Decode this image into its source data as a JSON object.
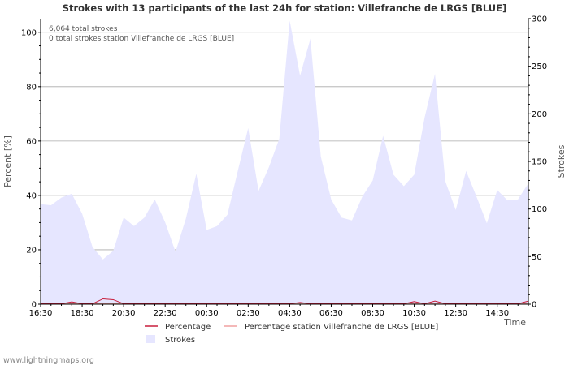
{
  "chart_data": {
    "type": "area",
    "title": "Strokes with 13 participants of the last 24h for station: Villefranche de LRGS [BLUE]",
    "xlabel": "Time",
    "ylabel_left": "Percent   [%]",
    "ylabel_right": "Strokes",
    "ylim_left": [
      0,
      105
    ],
    "ylim_right": [
      0,
      300
    ],
    "yticks_left": [
      "0",
      "20",
      "40",
      "60",
      "80",
      "100"
    ],
    "yticks_right": [
      "0",
      "50",
      "100",
      "150",
      "200",
      "250",
      "300"
    ],
    "yticks_left_values": [
      0,
      20,
      40,
      60,
      80,
      100
    ],
    "yticks_right_values": [
      0,
      50,
      100,
      150,
      200,
      250,
      300
    ],
    "xticks": [
      "16:30",
      "18:30",
      "20:30",
      "22:30",
      "00:30",
      "02:30",
      "04:30",
      "06:30",
      "08:30",
      "10:30",
      "12:30",
      "14:30"
    ],
    "x_start_hours": 0,
    "x_end_hours": 23.5,
    "annotations": [
      "6,064 total strokes",
      "0 total strokes station Villefranche de LRGS [BLUE]"
    ],
    "legend": {
      "percentage": "Percentage",
      "percentage_station": "Percentage station Villefranche de LRGS [BLUE]",
      "strokes": "Strokes"
    },
    "series": [
      {
        "name": "Strokes",
        "axis": "right",
        "hours": [
          0,
          0.5,
          1,
          1.5,
          2,
          2.5,
          3,
          3.5,
          4,
          4.5,
          5,
          5.5,
          6,
          6.5,
          7,
          7.5,
          8,
          8.5,
          9,
          9.5,
          10,
          10.5,
          11,
          11.5,
          12,
          12.5,
          13,
          13.5,
          14,
          14.5,
          15,
          15.5,
          16,
          16.5,
          17,
          17.5,
          18,
          18.5,
          19,
          19.5,
          20,
          20.5,
          21,
          21.5,
          22,
          22.5,
          23,
          23.5
        ],
        "values": [
          105,
          104,
          112,
          116,
          95,
          60,
          47,
          56,
          91,
          82,
          91,
          110,
          86,
          55,
          90,
          137,
          78,
          82,
          94,
          140,
          185,
          119,
          144,
          174,
          298,
          240,
          279,
          155,
          110,
          91,
          88,
          113,
          130,
          177,
          136,
          124,
          136,
          196,
          242,
          129,
          99,
          140,
          113,
          85,
          120,
          109,
          110,
          127
        ]
      },
      {
        "name": "Percentage",
        "axis": "left",
        "hours": [
          0,
          1,
          1.5,
          2,
          2.5,
          3,
          3.5,
          4,
          4.5,
          5,
          12,
          12.5,
          13,
          17.5,
          18,
          18.5,
          19,
          19.5,
          20,
          23,
          23.5
        ],
        "values": [
          0,
          0,
          0.7,
          0,
          0,
          1.8,
          1.5,
          0,
          0,
          0,
          0,
          0.5,
          0,
          0,
          0.8,
          0,
          1,
          0,
          0,
          0,
          1
        ]
      },
      {
        "name": "Percentage station Villefranche de LRGS [BLUE]",
        "axis": "left",
        "hours": [
          0,
          23.5
        ],
        "values": [
          0,
          0
        ]
      }
    ]
  },
  "footer": {
    "source": "www.lightningmaps.org"
  },
  "colors": {
    "area_fill": "#E6E6FF",
    "percentage_line": "#C81E3C",
    "station_line": "#F0A0A0",
    "grid": "#AAAAAA",
    "axis": "#000000"
  }
}
